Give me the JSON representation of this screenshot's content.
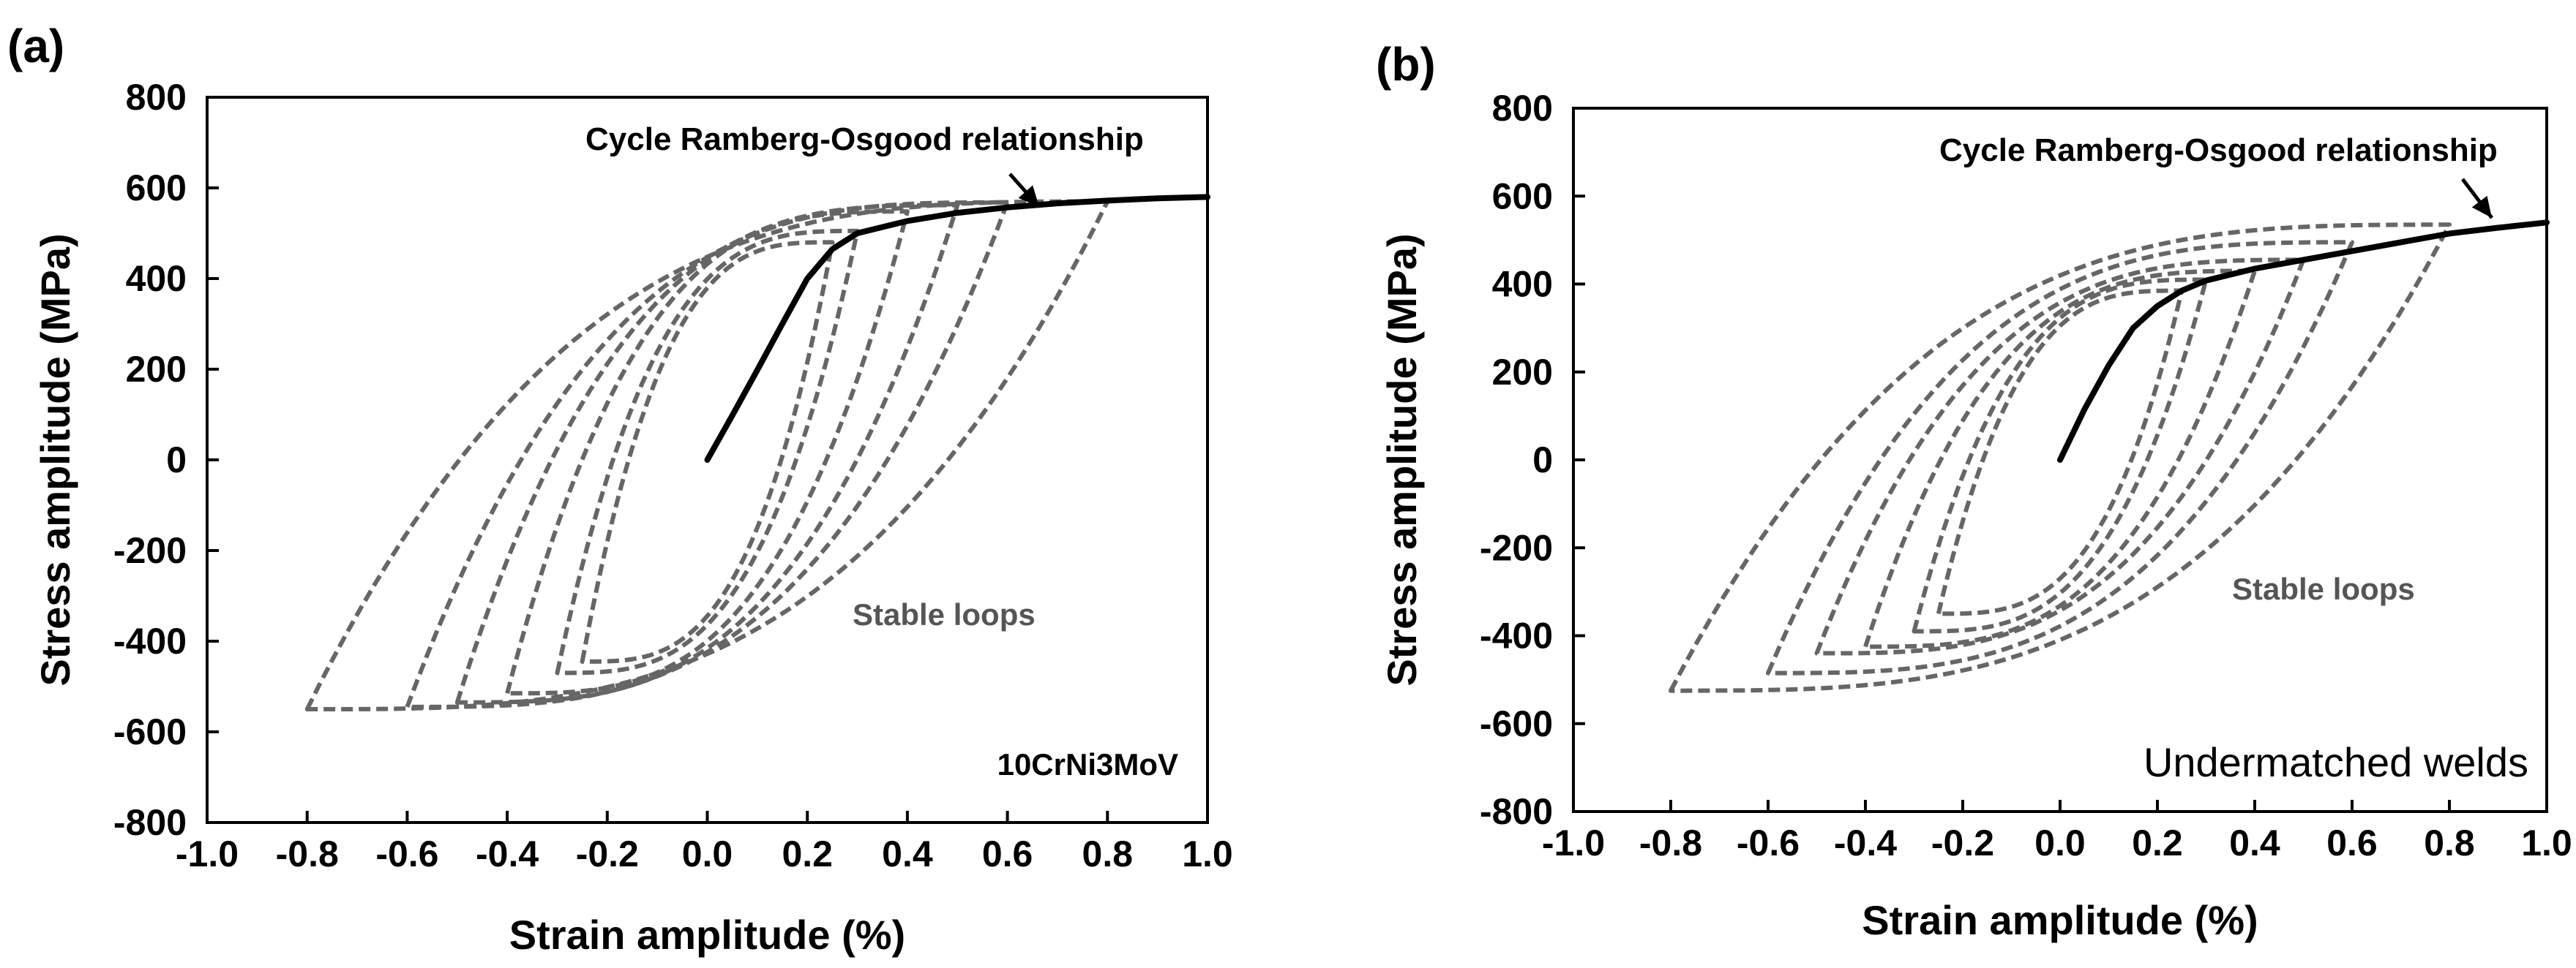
{
  "figure": {
    "panels": [
      {
        "id": "a",
        "panel_label": "(a)",
        "material": "10CrNi3MoV",
        "annotation": "Cycle Ramberg-Osgood relationship",
        "loops_label": "Stable loops"
      },
      {
        "id": "b",
        "panel_label": "(b)",
        "material": "Undermatched welds",
        "annotation": "Cycle Ramberg-Osgood relationship",
        "loops_label": "Stable loops"
      }
    ]
  },
  "chart_data": [
    {
      "type": "line",
      "title": "10CrNi3MoV",
      "xlabel": "Strain amplitude (%)",
      "ylabel": "Stress amplitude (MPa)",
      "xlim": [
        -1.0,
        1.0
      ],
      "ylim": [
        -800,
        800
      ],
      "xticks": [
        "-1.0",
        "-0.8",
        "-0.6",
        "-0.4",
        "-0.2",
        "0.0",
        "0.2",
        "0.4",
        "0.6",
        "0.8",
        "1.0"
      ],
      "yticks": [
        "800",
        "600",
        "400",
        "200",
        "0",
        "-200",
        "-400",
        "-600",
        "-800"
      ],
      "grid": false,
      "colors": {
        "curve": "#000000",
        "loops": "#666666"
      },
      "series": [
        {
          "name": "Cycle Ramberg-Osgood relationship",
          "style": "solid",
          "x": [
            0.0,
            0.05,
            0.1,
            0.15,
            0.2,
            0.25,
            0.3,
            0.4,
            0.5,
            0.6,
            0.7,
            0.8,
            0.9,
            1.0
          ],
          "y": [
            0,
            98,
            198,
            300,
            400,
            465,
            500,
            527,
            545,
            557,
            566,
            572,
            577,
            580
          ]
        },
        {
          "name": "Stable loops",
          "style": "dashed",
          "loops": [
            {
              "amplitude": 0.8,
              "stress_min": -550,
              "stress_max": 570
            },
            {
              "amplitude": 0.6,
              "stress_min": -545,
              "stress_max": 568
            },
            {
              "amplitude": 0.5,
              "stress_min": -535,
              "stress_max": 562
            },
            {
              "amplitude": 0.4,
              "stress_min": -515,
              "stress_max": 548
            },
            {
              "amplitude": 0.3,
              "stress_min": -470,
              "stress_max": 505
            },
            {
              "amplitude": 0.25,
              "stress_min": -445,
              "stress_max": 480
            }
          ]
        }
      ]
    },
    {
      "type": "line",
      "title": "Undermatched welds",
      "xlabel": "Strain amplitude (%)",
      "ylabel": "Stress amplitude (MPa)",
      "xlim": [
        -1.0,
        1.0
      ],
      "ylim": [
        -800,
        800
      ],
      "xticks": [
        "-1.0",
        "-0.8",
        "-0.6",
        "-0.4",
        "-0.2",
        "0.0",
        "0.2",
        "0.4",
        "0.6",
        "0.8",
        "1.0"
      ],
      "yticks": [
        "800",
        "600",
        "400",
        "200",
        "0",
        "-200",
        "-400",
        "-600",
        "-800"
      ],
      "grid": false,
      "colors": {
        "curve": "#000000",
        "loops": "#666666"
      },
      "series": [
        {
          "name": "Cycle Ramberg-Osgood relationship",
          "style": "solid",
          "x": [
            0.0,
            0.05,
            0.1,
            0.15,
            0.2,
            0.25,
            0.3,
            0.4,
            0.5,
            0.6,
            0.7,
            0.8,
            0.9,
            1.0
          ],
          "y": [
            0,
            115,
            215,
            300,
            350,
            385,
            408,
            435,
            455,
            475,
            495,
            515,
            528,
            540
          ]
        },
        {
          "name": "Stable loops",
          "style": "dashed",
          "loops": [
            {
              "amplitude": 0.8,
              "stress_min": -525,
              "stress_max": 535
            },
            {
              "amplitude": 0.6,
              "stress_min": -485,
              "stress_max": 495
            },
            {
              "amplitude": 0.5,
              "stress_min": -440,
              "stress_max": 455
            },
            {
              "amplitude": 0.4,
              "stress_min": -425,
              "stress_max": 430
            },
            {
              "amplitude": 0.3,
              "stress_min": -390,
              "stress_max": 410
            },
            {
              "amplitude": 0.25,
              "stress_min": -350,
              "stress_max": 385
            }
          ]
        }
      ]
    }
  ]
}
